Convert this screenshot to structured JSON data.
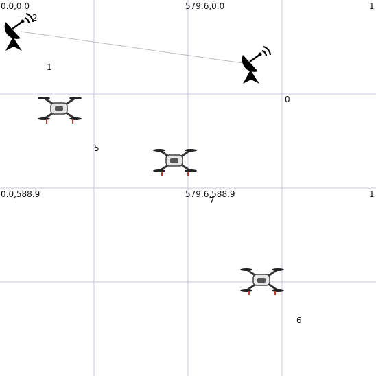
{
  "map": {
    "grid_lines": true,
    "colors": {
      "grid": "#c9c9e0",
      "link": "#bdbdbd",
      "text": "#111111"
    },
    "corner_labels": [
      {
        "id": "origin-top-left",
        "text": "0.0,0.0"
      },
      {
        "id": "top-middle",
        "text": "579.6,0.0"
      },
      {
        "id": "top-right",
        "text": "1"
      },
      {
        "id": "mid-left",
        "text": "0.0,588.9"
      },
      {
        "id": "center",
        "text": "579.6,588.9"
      },
      {
        "id": "mid-right",
        "text": "1"
      }
    ],
    "nodes": [
      {
        "id": "2",
        "label": "2",
        "type": "ground-station",
        "icon": "satellite-dish-icon"
      },
      {
        "id": "1",
        "label": "1",
        "type": "label-only"
      },
      {
        "id": "0",
        "label": "0",
        "type": "ground-station",
        "icon": "satellite-dish-icon"
      },
      {
        "id": "5",
        "label": "5",
        "type": "drone",
        "icon": "drone-icon"
      },
      {
        "id": "7",
        "label": "7",
        "type": "drone",
        "icon": "drone-icon"
      },
      {
        "id": "6",
        "label": "6",
        "type": "drone",
        "icon": "drone-icon"
      }
    ]
  }
}
